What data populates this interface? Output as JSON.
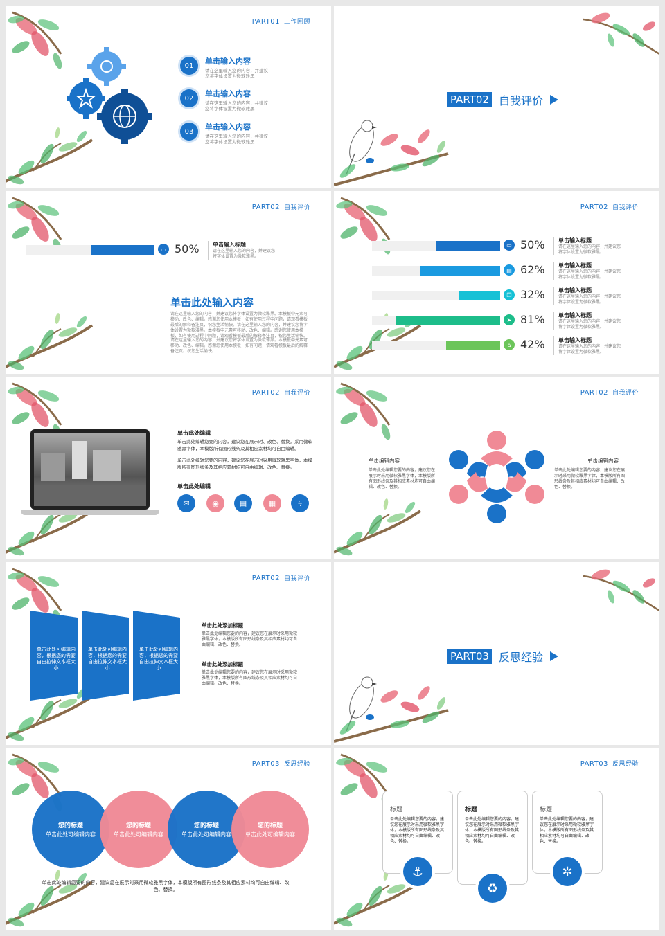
{
  "colors": {
    "blue": "#1a72c8",
    "pink": "#f08a96",
    "teal": "#16c1d6",
    "green": "#1dbd8a",
    "lightgreen": "#6cc55a",
    "skyblue": "#1a9ae0"
  },
  "slide1": {
    "tag": "PART01",
    "tag_sub": "工作回顾",
    "items": [
      {
        "num": "01",
        "title": "单击输入内容",
        "desc": "请在这里输入您的内容，并建议您将字体设置为微软雅黑"
      },
      {
        "num": "02",
        "title": "单击输入内容",
        "desc": "请在这里输入您的内容，并建议您将字体设置为微软雅黑"
      },
      {
        "num": "03",
        "title": "单击输入内容",
        "desc": "请在这里输入您的内容，并建议您将字体设置为微软雅黑"
      }
    ],
    "gear_icons": [
      "gear-icon",
      "star-icon",
      "globe-icon"
    ]
  },
  "slide2": {
    "part": "PART02",
    "name": "自我评价"
  },
  "slide3": {
    "tag": "PART02",
    "tag_sub": "自我评价",
    "bar": {
      "value": 50,
      "label": "50%",
      "title": "单击输入标题",
      "desc": "请在这里输入您的内容，并建议您将字体设置为微软雅黑。",
      "icon": "monitor-icon"
    },
    "heading": "单击此处输入内容",
    "para1": "请在这里输入您的内容，并建议您将字体设置为微软雅黑。本模板中元素可移动、改色、编辑。感谢您使用本模板，如有使用过程中问题，请观看模板最后的解释备注页，祝您生活愉快。请在这里输入您的内容，并建议您将字体设置为微软雅黑。本模板中元素可移动、改色、编辑。感谢您使用本模板，如有使用过程中问题，请观看模板最后的解释备注页，祝您生活愉快。",
    "para2": "请在这里输入您的内容，并建议您将字体设置为微软雅黑。本模板中元素可移动、改色、编辑。感谢您使用本模板，如有问题，请观看模板最后的解释备注页。祝您生活愉快。"
  },
  "slide4": {
    "tag": "PART02",
    "tag_sub": "自我评价",
    "bars": [
      {
        "value": 50,
        "label": "50%",
        "color": "#1a72c8",
        "icon": "monitor-icon",
        "title": "单击输入标题",
        "desc": "请在这里输入您的内容，并建议您将字体设置为微软雅黑。"
      },
      {
        "value": 62,
        "label": "62%",
        "color": "#1a9ae0",
        "icon": "document-icon",
        "title": "单击输入标题",
        "desc": "请在这里输入您的内容，并建议您将字体设置为微软雅黑。"
      },
      {
        "value": 32,
        "label": "32%",
        "color": "#16c1d6",
        "icon": "copy-icon",
        "title": "单击输入标题",
        "desc": "请在这里输入您的内容，并建议您将字体设置为微软雅黑。"
      },
      {
        "value": 81,
        "label": "81%",
        "color": "#1dbd8a",
        "icon": "send-icon",
        "title": "单击输入标题",
        "desc": "请在这里输入您的内容，并建议您将字体设置为微软雅黑。"
      },
      {
        "value": 42,
        "label": "42%",
        "color": "#6cc55a",
        "icon": "bank-icon",
        "title": "单击输入标题",
        "desc": "请在这里输入您的内容，并建议您将字体设置为微软雅黑。"
      }
    ]
  },
  "slide5": {
    "tag": "PART02",
    "tag_sub": "自我评价",
    "title1": "单击此处编辑",
    "para1": "单击此处编辑您要的内容，建议您在展示时、改色、替换。采用微软雅黑字体，本模版所有图形线条及其相应素材均可自由编辑。",
    "para2": "单击此处编辑您要的内容，建议您在展示时采用微软雅黑字体，本模版所有图形线条及其相应素材均可自由编辑、改色、替换。",
    "title2": "单击此处编辑",
    "icons": [
      "mail-icon",
      "camera-icon",
      "keyboard-icon",
      "calendar-icon",
      "bolt-icon"
    ]
  },
  "slide6": {
    "tag": "PART02",
    "tag_sub": "自我评价",
    "left_title": "单击编辑内容",
    "left_desc": "单击此处编辑您要的内容，建议您在展示时采用微软雅黑字体，本模版所有图形线条及其相应素材均可自由编辑、改色、替换。",
    "right_title": "单击编辑内容",
    "right_desc": "单击此处编辑您要的内容，建议您在展示时采用微软雅黑字体，本模版所有图形线条及其相应素材均可自由编辑、改色、替换。"
  },
  "slide7": {
    "tag": "PART02",
    "tag_sub": "自我评价",
    "boxes": [
      "单击此处可编辑内容，根据您的需要自由拉伸文本框大小",
      "单击此处可编辑内容，根据您的需要自由拉伸文本框大小",
      "单击此处可编辑内容，根据您的需要自由拉伸文本框大小"
    ],
    "title1": "单击此处添加标题",
    "desc1": "单击此处编辑您要的内容，建议您在展示时采用微软雅黑字体，本模版所有图形线条及其相应素材均可自由编辑、改色、替换。",
    "title2": "单击此处添加标题",
    "desc2": "单击此处编辑您要的内容，建议您在展示时采用微软雅黑字体，本模版所有图形线条及其相应素材均可自由编辑、改色、替换。"
  },
  "slide8": {
    "part": "PART03",
    "name": "反思经验"
  },
  "slide9": {
    "tag": "PART03",
    "tag_sub": "反思经验",
    "circles": [
      {
        "title": "您的标题",
        "sub": "单击此处可编辑内容"
      },
      {
        "title": "您的标题",
        "sub": "单击此处可编辑内容"
      },
      {
        "title": "您的标题",
        "sub": "单击此处可编辑内容"
      },
      {
        "title": "您的标题",
        "sub": "单击此处可编辑内容"
      }
    ],
    "footer": "单击此处编辑您要的内容，建议您在展示时采用微软雅黑字体，本模版所有图形线条及其相应素材均可自由编辑、改色、替换。"
  },
  "slide10": {
    "tag": "PART03",
    "tag_sub": "反思经验",
    "cards": [
      {
        "title": "标题",
        "desc": "单击此处编辑您要的内容，建议您在展示时采用微软雅黑字体，本模版所有图形线条及其相应素材均可自由编辑、改色、替换。",
        "icon": "anchor-icon",
        "glyph": "⚓"
      },
      {
        "title": "标题",
        "desc": "单击此处编辑您要的内容，建议您在展示时采用微软雅黑字体，本模版所有图形线条及其相应素材均可自由编辑、改色、替换。",
        "icon": "recycle-icon",
        "glyph": "♻"
      },
      {
        "title": "标题",
        "desc": "单击此处编辑您要的内容，建议您在展示时采用微软雅黑字体，本模版所有图形线条及其相应素材均可自由编辑、改色、替换。",
        "icon": "aperture-icon",
        "glyph": "✲"
      }
    ]
  }
}
